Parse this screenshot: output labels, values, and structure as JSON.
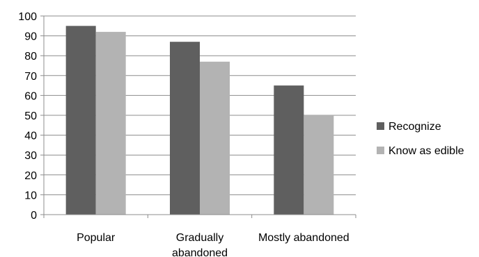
{
  "chart_data": {
    "type": "bar",
    "categories": [
      [
        "Popular"
      ],
      [
        "Gradually",
        "abandoned"
      ],
      [
        "Mostly abandoned"
      ]
    ],
    "series": [
      {
        "name": "Recognize",
        "values": [
          95,
          87,
          65
        ],
        "color": "#5f5f5f"
      },
      {
        "name": "Know as edible",
        "values": [
          92,
          77,
          50
        ],
        "color": "#b3b3b3"
      }
    ],
    "ylim": [
      0,
      100
    ],
    "yticks": [
      0,
      10,
      20,
      30,
      40,
      50,
      60,
      70,
      80,
      90,
      100
    ],
    "grid": true,
    "legend": "right",
    "title": "",
    "xlabel": "",
    "ylabel": ""
  }
}
